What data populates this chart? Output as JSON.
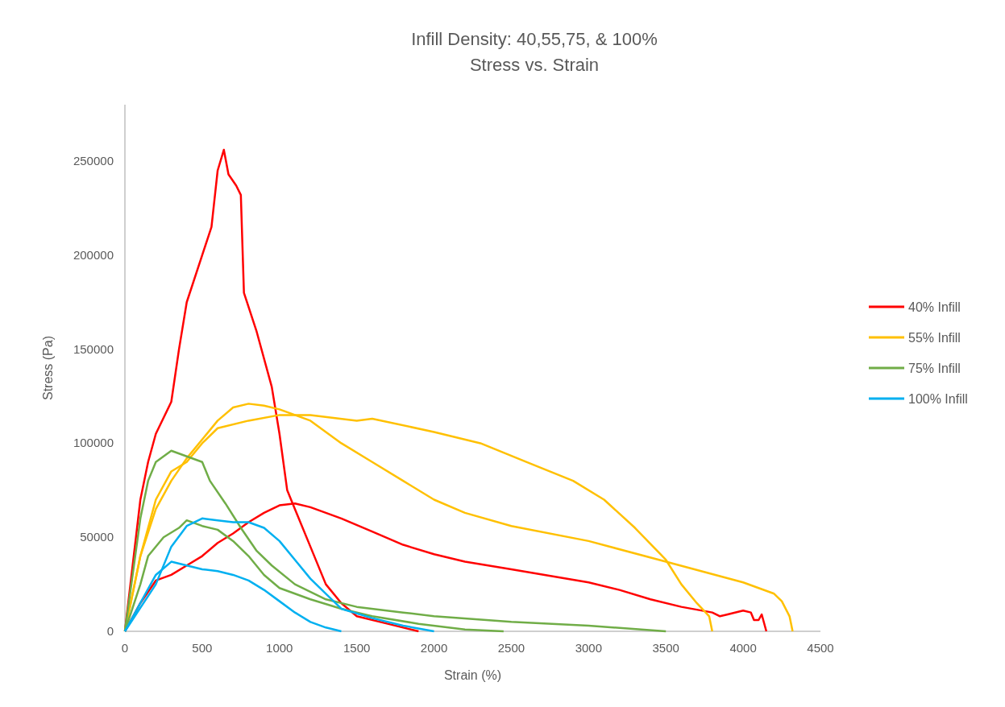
{
  "chart_data": {
    "type": "line",
    "title": "Infill Density: 40,55,75, & 100%",
    "subtitle": "Stress vs. Strain",
    "xlabel": "Strain (%)",
    "ylabel": "Stress (Pa)",
    "xlim": [
      0,
      4500
    ],
    "xticks": [
      0,
      500,
      1000,
      1500,
      2000,
      2500,
      3000,
      3500,
      4000,
      4500
    ],
    "ylim": [
      0,
      280000
    ],
    "yticks": [
      0,
      50000,
      100000,
      150000,
      200000,
      250000
    ],
    "grid": false,
    "legend": "right",
    "marker": "none",
    "line_style": "solid",
    "series": [
      {
        "name": "40% Infill",
        "color": "#ff0000",
        "x": [
          0,
          50,
          100,
          150,
          200,
          300,
          350,
          400,
          500,
          560,
          600,
          640,
          670,
          720,
          750,
          770,
          850,
          950,
          1000,
          1050,
          1100,
          1200,
          1300,
          1400,
          1500,
          1700,
          1900
        ],
        "values": [
          0,
          35000,
          70000,
          90000,
          105000,
          122000,
          150000,
          175000,
          200000,
          215000,
          245000,
          256000,
          243000,
          237000,
          232000,
          180000,
          160000,
          130000,
          105000,
          75000,
          65000,
          45000,
          25000,
          15000,
          8000,
          4000,
          0
        ]
      },
      {
        "color": "#ff0000",
        "x": [
          0,
          100,
          200,
          300,
          400,
          500,
          600,
          700,
          800,
          900,
          1000,
          1100,
          1200,
          1400,
          1600,
          1800,
          2000,
          2200,
          2500,
          3000,
          3200,
          3400,
          3600,
          3800,
          3850,
          3900,
          4000,
          4050,
          4070,
          4100,
          4120,
          4150
        ],
        "values": [
          0,
          15000,
          27000,
          30000,
          35000,
          40000,
          47000,
          52000,
          58000,
          63000,
          67000,
          68000,
          66000,
          60000,
          53000,
          46000,
          41000,
          37000,
          33000,
          26000,
          22000,
          17000,
          13000,
          10000,
          8000,
          9000,
          11000,
          10000,
          6000,
          6000,
          9000,
          0
        ]
      },
      {
        "name": "55% Infill",
        "color": "#ffc000",
        "x": [
          0,
          100,
          200,
          300,
          400,
          500,
          600,
          700,
          800,
          900,
          1000,
          1200,
          1400,
          1600,
          1800,
          2000,
          2200,
          2500,
          3000,
          3500,
          4000,
          4200,
          4250,
          4300,
          4320
        ],
        "values": [
          0,
          40000,
          65000,
          80000,
          92000,
          102000,
          112000,
          119000,
          121000,
          120000,
          118000,
          112000,
          100000,
          90000,
          80000,
          70000,
          63000,
          56000,
          48000,
          37000,
          26000,
          20000,
          16000,
          8000,
          0
        ]
      },
      {
        "color": "#ffc000",
        "x": [
          0,
          100,
          200,
          300,
          400,
          500,
          600,
          800,
          1000,
          1200,
          1500,
          1600,
          2000,
          2300,
          2600,
          2900,
          3100,
          3300,
          3500,
          3600,
          3700,
          3780,
          3800
        ],
        "values": [
          0,
          40000,
          70000,
          85000,
          90000,
          100000,
          108000,
          112000,
          115000,
          115000,
          112000,
          113000,
          106000,
          100000,
          90000,
          80000,
          70000,
          55000,
          38000,
          25000,
          15000,
          8000,
          0
        ]
      },
      {
        "name": "75% Infill",
        "color": "#70ad47",
        "x": [
          0,
          100,
          150,
          200,
          300,
          400,
          500,
          550,
          650,
          750,
          850,
          950,
          1100,
          1300,
          1500,
          1800,
          2000,
          2500,
          3000,
          3500
        ],
        "values": [
          0,
          60000,
          80000,
          90000,
          96000,
          93000,
          90000,
          80000,
          68000,
          55000,
          43000,
          35000,
          25000,
          17000,
          13000,
          10000,
          8000,
          5000,
          3000,
          0
        ]
      },
      {
        "color": "#70ad47",
        "x": [
          0,
          100,
          150,
          250,
          350,
          400,
          500,
          600,
          700,
          800,
          900,
          1000,
          1200,
          1400,
          1600,
          1900,
          2200,
          2450
        ],
        "values": [
          0,
          25000,
          40000,
          50000,
          55000,
          59000,
          56000,
          54000,
          48000,
          40000,
          30000,
          23000,
          17000,
          12000,
          8000,
          4000,
          1000,
          0
        ]
      },
      {
        "name": "100% Infill",
        "color": "#00b0f0",
        "x": [
          0,
          200,
          300,
          400,
          500,
          600,
          700,
          800,
          900,
          1000,
          1100,
          1200,
          1300,
          1400,
          1600,
          1800,
          2000
        ],
        "values": [
          0,
          25000,
          45000,
          56000,
          60000,
          59000,
          58000,
          58000,
          55000,
          48000,
          38000,
          28000,
          20000,
          12000,
          7000,
          3000,
          0
        ]
      },
      {
        "color": "#00b0f0",
        "x": [
          0,
          100,
          200,
          300,
          400,
          500,
          600,
          700,
          800,
          900,
          1000,
          1100,
          1200,
          1300,
          1400
        ],
        "values": [
          0,
          15000,
          30000,
          37000,
          35000,
          33000,
          32000,
          30000,
          27000,
          22000,
          16000,
          10000,
          5000,
          2000,
          0
        ]
      }
    ]
  }
}
